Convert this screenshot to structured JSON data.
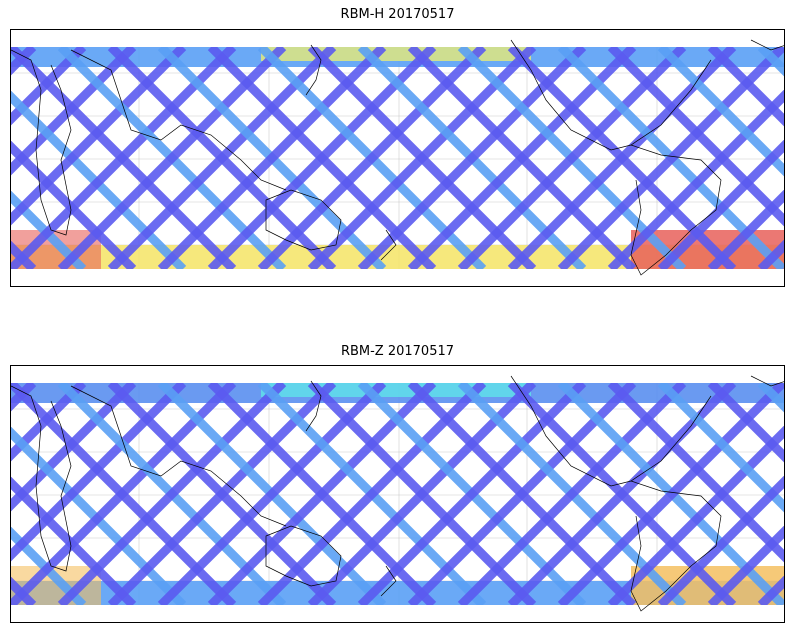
{
  "figure": {
    "panels": [
      {
        "id": "rbm-h",
        "title": "RBM-H 20170517",
        "colormap": [
          "#5b5bf0",
          "#5aa0f5",
          "#5fe8e8",
          "#9df59b",
          "#f5f06a",
          "#f5b050",
          "#e8605a"
        ],
        "south_band_color": "#f5e56e",
        "south_pacific_hot_color": "#e8605a",
        "north_band_color": "#5aa0f5",
        "north_hot_color": "#f0f06e"
      },
      {
        "id": "rbm-z",
        "title": "RBM-Z 20170517",
        "colormap": [
          "#5b5bf0",
          "#5aa0f5",
          "#5fe8e8",
          "#9df59b",
          "#f5f06a",
          "#f5b050",
          "#e8605a"
        ],
        "south_band_color": "#5aa0f5",
        "south_pacific_hot_color": "#f5c060",
        "north_band_color": "#5a8ff0",
        "north_hot_color": "#5fe8e8"
      }
    ]
  }
}
